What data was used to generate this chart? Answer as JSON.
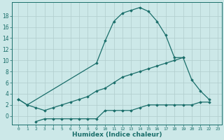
{
  "xlabel": "Humidex (Indice chaleur)",
  "bg_color": "#cce8e8",
  "line_color": "#1a6e6a",
  "grid_color": "#b0cccc",
  "ylim": [
    -1.5,
    20.5
  ],
  "yticks": [
    0,
    2,
    4,
    6,
    8,
    10,
    12,
    14,
    16,
    18
  ],
  "xticks": [
    0,
    1,
    2,
    3,
    4,
    5,
    6,
    7,
    8,
    9,
    10,
    11,
    12,
    13,
    14,
    15,
    16,
    17,
    18,
    19,
    20,
    21,
    22,
    23
  ],
  "marker": "D",
  "markersize": 1.8,
  "linewidth": 0.9,
  "upper_x": [
    0,
    1,
    9,
    10,
    11,
    12,
    13,
    14,
    15,
    16,
    17,
    18,
    19,
    20,
    21,
    22
  ],
  "upper_y": [
    3,
    2,
    9.5,
    13.5,
    17,
    18.5,
    19,
    19.5,
    18.8,
    17,
    14.5,
    10.5,
    10.5,
    6.5,
    4.5,
    3
  ],
  "lower_x": [
    0,
    1,
    2,
    3,
    4,
    5,
    6,
    7,
    8,
    9,
    10,
    11,
    12,
    13,
    14,
    15,
    16,
    17,
    18,
    19
  ],
  "lower_y": [
    3,
    2,
    1.5,
    1,
    1.5,
    2,
    2.5,
    3,
    3.5,
    4.5,
    5,
    6,
    7,
    7.5,
    8,
    8.5,
    9,
    9.5,
    10,
    10.5
  ],
  "bottom_x": [
    2,
    3,
    4,
    5,
    6,
    7,
    8,
    9,
    10,
    11,
    12,
    13,
    14,
    15,
    16,
    17,
    18,
    19,
    20,
    21,
    22
  ],
  "bottom_y": [
    -1,
    -0.5,
    -0.5,
    -0.5,
    -0.5,
    -0.5,
    -0.5,
    -0.5,
    1,
    1,
    1,
    1,
    1.5,
    2,
    2,
    2,
    2,
    2,
    2,
    2.5,
    2.5
  ]
}
